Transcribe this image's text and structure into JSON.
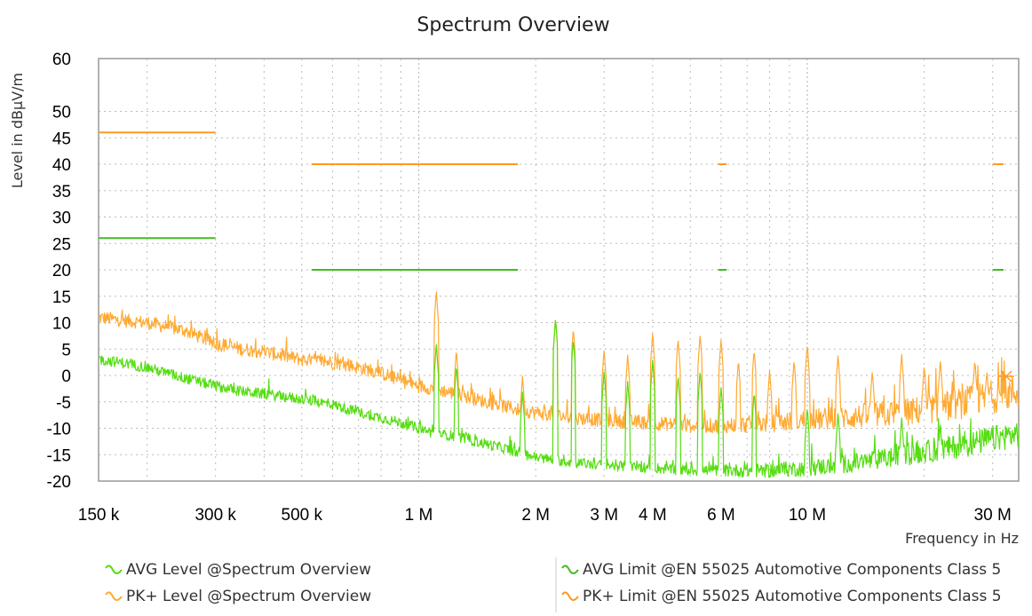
{
  "colors": {
    "avg": "#55dd11",
    "pk": "#ffaa33",
    "avg_limit": "#44bb22",
    "pk_limit": "#ff9922",
    "grid": "#bbbbbb",
    "frame": "#999999"
  },
  "legend": [
    {
      "label": "AVG Level @Spectrum Overview",
      "color": "#55dd11",
      "icon": "wave-icon"
    },
    {
      "label": "PK+ Level @Spectrum Overview",
      "color": "#ffaa33",
      "icon": "wave-icon"
    },
    {
      "label": "AVG Limit @EN 55025 Automotive Components Class 5",
      "color": "#44bb22",
      "icon": "wave-icon"
    },
    {
      "label": "PK+ Limit @EN 55025 Automotive Components Class 5",
      "color": "#ff9922",
      "icon": "wave-icon"
    }
  ],
  "chart_data": {
    "type": "line",
    "title": "Spectrum Overview",
    "xlabel": "Frequency in Hz",
    "ylabel": "Level in dBµV/m",
    "xscale": "log",
    "xlim": [
      150000,
      35000000
    ],
    "ylim": [
      -20,
      60
    ],
    "grid": true,
    "legend_position": "bottom",
    "y_ticks": [
      60,
      50,
      45,
      40,
      35,
      30,
      25,
      20,
      15,
      10,
      5,
      0,
      -5,
      -10,
      -15,
      -20
    ],
    "x_ticks": [
      {
        "value": 150000,
        "label": "150 k"
      },
      {
        "value": 300000,
        "label": "300 k"
      },
      {
        "value": 500000,
        "label": "500 k"
      },
      {
        "value": 1000000,
        "label": "1 M"
      },
      {
        "value": 2000000,
        "label": "2 M"
      },
      {
        "value": 3000000,
        "label": "3 M"
      },
      {
        "value": 4000000,
        "label": "4 M"
      },
      {
        "value": 6000000,
        "label": "6 M"
      },
      {
        "value": 10000000,
        "label": "10 M"
      },
      {
        "value": 30000000,
        "label": "30 M"
      }
    ],
    "series": [
      {
        "name": "PK+ Level @Spectrum Overview",
        "x": [
          150000,
          170000,
          200000,
          250000,
          300000,
          350000,
          400000,
          500000,
          600000,
          700000,
          800000,
          900000,
          1000000,
          1100000,
          1250000,
          1400000,
          1600000,
          1800000,
          2000000,
          2500000,
          3000000,
          4000000,
          5000000,
          6000000,
          8000000,
          10000000,
          12000000,
          15000000,
          18000000,
          22000000,
          26000000,
          30000000,
          35000000
        ],
        "y": [
          11,
          10.5,
          10,
          8.5,
          6,
          5,
          4.5,
          3,
          2.5,
          1.5,
          0.5,
          -1,
          -2,
          -2.5,
          -3.5,
          -4.5,
          -5.5,
          -6.5,
          -7,
          -8,
          -8.5,
          -9,
          -9.5,
          -9.5,
          -9,
          -8.5,
          -8,
          -7.5,
          -7,
          -6,
          -5,
          -4,
          -3
        ],
        "peaks": [
          {
            "x": 1110000,
            "y": 16
          },
          {
            "x": 1250000,
            "y": 5
          },
          {
            "x": 1850000,
            "y": 0
          },
          {
            "x": 2250000,
            "y": 11
          },
          {
            "x": 2500000,
            "y": 9
          },
          {
            "x": 3000000,
            "y": 5
          },
          {
            "x": 3450000,
            "y": 4
          },
          {
            "x": 4000000,
            "y": 8
          },
          {
            "x": 4650000,
            "y": 7
          },
          {
            "x": 5300000,
            "y": 8
          },
          {
            "x": 6000000,
            "y": 7
          },
          {
            "x": 6650000,
            "y": 3
          },
          {
            "x": 7300000,
            "y": 5
          },
          {
            "x": 8000000,
            "y": 1
          },
          {
            "x": 9250000,
            "y": 3
          },
          {
            "x": 10000000,
            "y": 6
          },
          {
            "x": 12000000,
            "y": 4
          },
          {
            "x": 14700000,
            "y": 1
          },
          {
            "x": 17500000,
            "y": 4
          },
          {
            "x": 20000000,
            "y": 2
          },
          {
            "x": 22000000,
            "y": 3
          },
          {
            "x": 27000000,
            "y": 3
          },
          {
            "x": 29000000,
            "y": 1
          }
        ]
      },
      {
        "name": "AVG Level @Spectrum Overview",
        "x": [
          150000,
          170000,
          200000,
          250000,
          300000,
          350000,
          400000,
          500000,
          600000,
          700000,
          800000,
          900000,
          1000000,
          1100000,
          1250000,
          1400000,
          1600000,
          1800000,
          2000000,
          2500000,
          3000000,
          4000000,
          5000000,
          6000000,
          8000000,
          10000000,
          12000000,
          15000000,
          18000000,
          22000000,
          26000000,
          30000000,
          35000000
        ],
        "y": [
          3,
          2.5,
          1.5,
          -0.5,
          -2,
          -3,
          -3.5,
          -4.5,
          -5.5,
          -7,
          -8,
          -9,
          -10,
          -11,
          -11.5,
          -12.5,
          -13.5,
          -14.5,
          -15.5,
          -16.5,
          -17,
          -17.5,
          -18,
          -18,
          -18,
          -17.5,
          -17,
          -16,
          -15,
          -14,
          -13,
          -12,
          -11
        ],
        "peaks": [
          {
            "x": 1110000,
            "y": 6
          },
          {
            "x": 1250000,
            "y": 2
          },
          {
            "x": 1850000,
            "y": -3
          },
          {
            "x": 2250000,
            "y": 11
          },
          {
            "x": 2500000,
            "y": 7
          },
          {
            "x": 3000000,
            "y": 1
          },
          {
            "x": 3450000,
            "y": -1
          },
          {
            "x": 4000000,
            "y": 3
          },
          {
            "x": 4650000,
            "y": 0
          },
          {
            "x": 5300000,
            "y": 1
          },
          {
            "x": 6000000,
            "y": -2
          },
          {
            "x": 7300000,
            "y": -3
          },
          {
            "x": 10000000,
            "y": -6
          },
          {
            "x": 12000000,
            "y": -7
          },
          {
            "x": 17500000,
            "y": -8
          },
          {
            "x": 22000000,
            "y": -9
          }
        ]
      },
      {
        "name": "PK+ Limit @EN 55025 Automotive Components Class 5",
        "segments": [
          {
            "x": [
              150000,
              300000
            ],
            "y": 46
          },
          {
            "x": [
              530000,
              1800000
            ],
            "y": 40
          },
          {
            "x": [
              5900000,
              6200000
            ],
            "y": 40
          },
          {
            "x": [
              30000000,
              32000000
            ],
            "y": 40
          }
        ]
      },
      {
        "name": "AVG Limit @EN 55025 Automotive Components Class 5",
        "segments": [
          {
            "x": [
              150000,
              300000
            ],
            "y": 26
          },
          {
            "x": [
              530000,
              1800000
            ],
            "y": 20
          },
          {
            "x": [
              5900000,
              6200000
            ],
            "y": 20
          },
          {
            "x": [
              30000000,
              32000000
            ],
            "y": 20
          }
        ]
      }
    ]
  }
}
